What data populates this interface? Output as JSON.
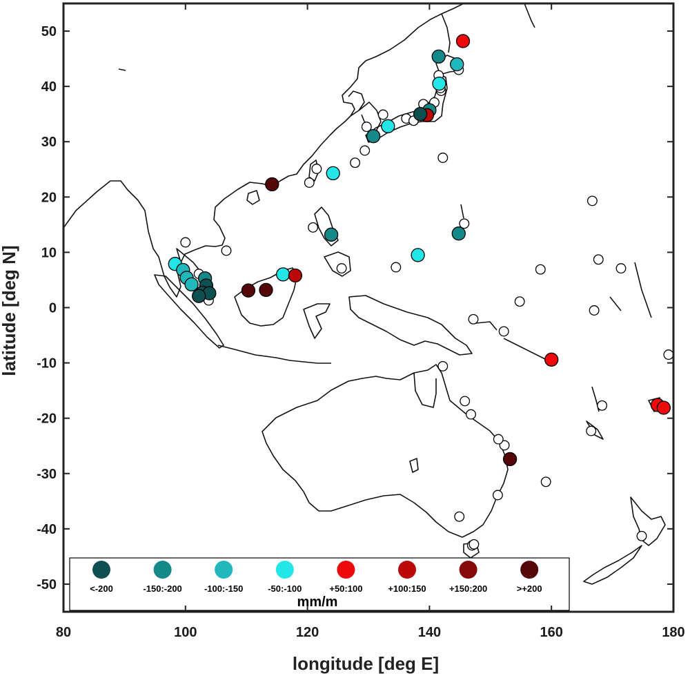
{
  "chart_data": {
    "type": "scatter",
    "subtype": "map",
    "xlabel": "longitude [deg E]",
    "ylabel": "latitude [deg N]",
    "xlim": [
      80,
      180
    ],
    "ylim": [
      -55,
      55
    ],
    "xticks": [
      80,
      100,
      120,
      140,
      160,
      180
    ],
    "yticks": [
      50,
      40,
      30,
      20,
      10,
      0,
      -10,
      -20,
      -30,
      -40,
      -50
    ],
    "grid": false,
    "legend": {
      "placement": "bottom-left",
      "unit": "mm/m",
      "classes": [
        {
          "key": "lt200",
          "label": "<-200",
          "color": "#0e4f52"
        },
        {
          "key": "m150_200",
          "label": "-150:-200",
          "color": "#15888a"
        },
        {
          "key": "m100_150",
          "label": "-100:-150",
          "color": "#20b8bd"
        },
        {
          "key": "m50_100",
          "label": "-50:-100",
          "color": "#22e6e8"
        },
        {
          "key": "p50_100",
          "label": "+50:100",
          "color": "#ee0a0a"
        },
        {
          "key": "p100_150",
          "label": "+100:150",
          "color": "#bb0808"
        },
        {
          "key": "p150_200",
          "label": "+150:200",
          "color": "#860808"
        },
        {
          "key": "gt200",
          "label": ">+200",
          "color": "#550707"
        }
      ]
    },
    "neutral_color": "#ffffff",
    "stations": [
      {
        "lon": 145.5,
        "lat": 48.2,
        "cls": "p50_100"
      },
      {
        "lon": 141.5,
        "lat": 45.4,
        "cls": "m150_200"
      },
      {
        "lon": 144.5,
        "lat": 44.0,
        "cls": "m100_150"
      },
      {
        "lon": 144.8,
        "lat": 43.0,
        "cls": null
      },
      {
        "lon": 141.5,
        "lat": 42.0,
        "cls": null
      },
      {
        "lon": 141.6,
        "lat": 40.5,
        "cls": "m50_100"
      },
      {
        "lon": 141.8,
        "lat": 39.7,
        "cls": null
      },
      {
        "lon": 141.9,
        "lat": 39.2,
        "cls": null
      },
      {
        "lon": 140.8,
        "lat": 37.1,
        "cls": null
      },
      {
        "lon": 139.0,
        "lat": 36.8,
        "cls": null
      },
      {
        "lon": 140.0,
        "lat": 35.7,
        "cls": "m150_200"
      },
      {
        "lon": 139.6,
        "lat": 34.8,
        "cls": "p100_150"
      },
      {
        "lon": 138.5,
        "lat": 35.0,
        "cls": "lt200"
      },
      {
        "lon": 137.4,
        "lat": 33.8,
        "cls": null
      },
      {
        "lon": 136.2,
        "lat": 34.2,
        "cls": null
      },
      {
        "lon": 133.2,
        "lat": 32.8,
        "cls": "m50_100"
      },
      {
        "lon": 132.4,
        "lat": 34.9,
        "cls": null
      },
      {
        "lon": 130.8,
        "lat": 31.0,
        "cls": "m150_200"
      },
      {
        "lon": 129.7,
        "lat": 32.7,
        "cls": null
      },
      {
        "lon": 129.4,
        "lat": 28.4,
        "cls": null
      },
      {
        "lon": 127.8,
        "lat": 26.2,
        "cls": null
      },
      {
        "lon": 142.2,
        "lat": 27.1,
        "cls": null
      },
      {
        "lon": 124.2,
        "lat": 24.3,
        "cls": "m50_100"
      },
      {
        "lon": 121.5,
        "lat": 25.1,
        "cls": null
      },
      {
        "lon": 120.3,
        "lat": 22.6,
        "cls": null
      },
      {
        "lon": 114.2,
        "lat": 22.3,
        "cls": "gt200"
      },
      {
        "lon": 120.9,
        "lat": 14.5,
        "cls": null
      },
      {
        "lon": 123.9,
        "lat": 13.2,
        "cls": "m150_200"
      },
      {
        "lon": 125.6,
        "lat": 7.1,
        "cls": null
      },
      {
        "lon": 145.7,
        "lat": 15.2,
        "cls": null
      },
      {
        "lon": 144.8,
        "lat": 13.4,
        "cls": "m150_200"
      },
      {
        "lon": 138.1,
        "lat": 9.5,
        "cls": "m50_100"
      },
      {
        "lon": 134.5,
        "lat": 7.3,
        "cls": null
      },
      {
        "lon": 166.7,
        "lat": 19.3,
        "cls": null
      },
      {
        "lon": 167.7,
        "lat": 8.7,
        "cls": null
      },
      {
        "lon": 171.4,
        "lat": 7.1,
        "cls": null
      },
      {
        "lon": 158.2,
        "lat": 6.9,
        "cls": null
      },
      {
        "lon": 154.8,
        "lat": 1.1,
        "cls": null
      },
      {
        "lon": 167.0,
        "lat": -0.5,
        "cls": null
      },
      {
        "lon": 147.2,
        "lat": -2.1,
        "cls": null
      },
      {
        "lon": 152.2,
        "lat": -4.3,
        "cls": null
      },
      {
        "lon": 160.0,
        "lat": -9.4,
        "cls": "p50_100"
      },
      {
        "lon": 179.2,
        "lat": -8.5,
        "cls": null
      },
      {
        "lon": 177.4,
        "lat": -17.6,
        "cls": "p50_100"
      },
      {
        "lon": 178.4,
        "lat": -18.1,
        "cls": "p50_100"
      },
      {
        "lon": 168.3,
        "lat": -17.7,
        "cls": null
      },
      {
        "lon": 166.5,
        "lat": -22.3,
        "cls": null
      },
      {
        "lon": 159.1,
        "lat": -31.5,
        "cls": null
      },
      {
        "lon": 174.8,
        "lat": -41.3,
        "cls": null
      },
      {
        "lon": 142.2,
        "lat": -10.6,
        "cls": null
      },
      {
        "lon": 145.8,
        "lat": -16.9,
        "cls": null
      },
      {
        "lon": 146.8,
        "lat": -19.3,
        "cls": null
      },
      {
        "lon": 151.3,
        "lat": -23.8,
        "cls": null
      },
      {
        "lon": 152.3,
        "lat": -24.9,
        "cls": null
      },
      {
        "lon": 153.2,
        "lat": -27.4,
        "cls": "gt200"
      },
      {
        "lon": 151.2,
        "lat": -33.9,
        "cls": null
      },
      {
        "lon": 144.9,
        "lat": -37.8,
        "cls": null
      },
      {
        "lon": 147.3,
        "lat": -42.8,
        "cls": null
      },
      {
        "lon": 147.0,
        "lat": -43.0,
        "cls": null
      },
      {
        "lon": 106.7,
        "lat": 10.3,
        "cls": null
      },
      {
        "lon": 100.0,
        "lat": 11.8,
        "cls": null
      },
      {
        "lon": 98.3,
        "lat": 7.9,
        "cls": "m50_100"
      },
      {
        "lon": 99.6,
        "lat": 6.8,
        "cls": "m100_150"
      },
      {
        "lon": 100.2,
        "lat": 5.4,
        "cls": "m100_150"
      },
      {
        "lon": 101.0,
        "lat": 4.2,
        "cls": "m100_150"
      },
      {
        "lon": 102.2,
        "lat": 6.1,
        "cls": null
      },
      {
        "lon": 103.2,
        "lat": 5.3,
        "cls": "m150_200"
      },
      {
        "lon": 103.4,
        "lat": 4.0,
        "cls": "lt200"
      },
      {
        "lon": 102.8,
        "lat": 2.7,
        "cls": "lt200"
      },
      {
        "lon": 103.9,
        "lat": 2.6,
        "cls": "lt200"
      },
      {
        "lon": 102.2,
        "lat": 2.1,
        "cls": "lt200"
      },
      {
        "lon": 103.8,
        "lat": 1.3,
        "cls": null
      },
      {
        "lon": 110.3,
        "lat": 3.1,
        "cls": "gt200"
      },
      {
        "lon": 113.2,
        "lat": 3.2,
        "cls": "gt200"
      },
      {
        "lon": 116.0,
        "lat": 6.0,
        "cls": "m50_100"
      },
      {
        "lon": 118.0,
        "lat": 5.8,
        "cls": "p100_150"
      }
    ]
  }
}
